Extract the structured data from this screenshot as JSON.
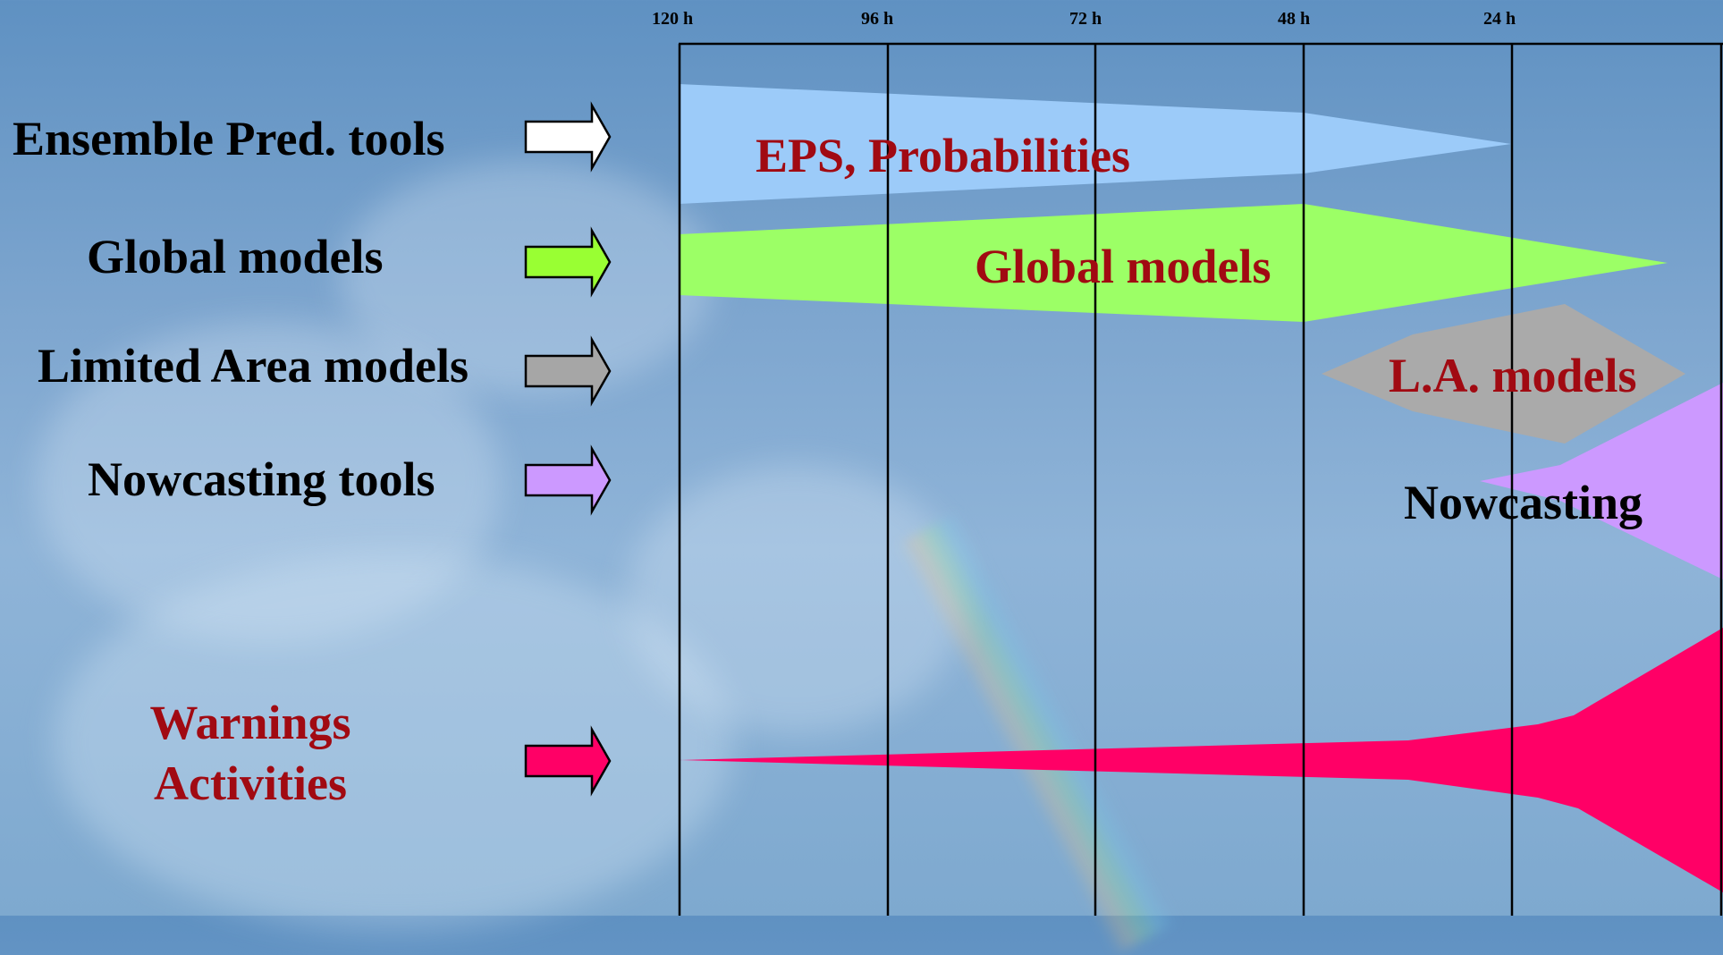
{
  "axis": {
    "ticks": [
      "120 h",
      "96 h",
      "72 h",
      "48 h",
      "24 h"
    ]
  },
  "rows": {
    "ensemble": {
      "label": "Ensemble Pred. tools",
      "arrow_color": "#ffffff",
      "band_label": "EPS, Probabilities",
      "band_color": "#9ccbf9",
      "text_color": "#a10a12"
    },
    "global": {
      "label": "Global models",
      "arrow_color": "#99ff33",
      "band_label": "Global models",
      "band_color": "#9cff66",
      "text_color": "#a10a12"
    },
    "lam": {
      "label": "Limited Area models",
      "arrow_color": "#a6a6a6",
      "band_label": "L.A. models",
      "band_color": "#aaaaaa",
      "text_color": "#a10a12"
    },
    "nowcasting": {
      "label": "Nowcasting tools",
      "arrow_color": "#cc99ff",
      "band_label": "Nowcasting",
      "band_color": "#cc99ff",
      "text_color": "#000000"
    },
    "warnings": {
      "label_line1": "Warnings",
      "label_line2": "Activities",
      "arrow_color": "#ff0066",
      "band_color": "#ff0066",
      "text_color": "#a10a12"
    }
  }
}
